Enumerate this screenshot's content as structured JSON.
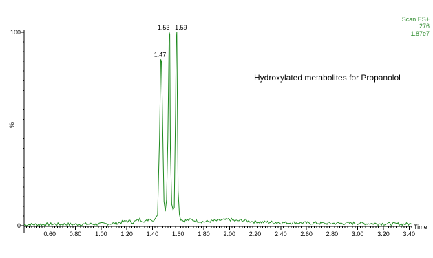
{
  "chart_data": {
    "type": "line",
    "title": "Hydroxylated metabolites for Propanolol",
    "xlabel": "Time",
    "ylabel": "%",
    "xlim": [
      0.4,
      3.42
    ],
    "ylim": [
      0,
      100
    ],
    "x_ticks": [
      "0.60",
      "0.80",
      "1.00",
      "1.20",
      "1.40",
      "1.60",
      "1.80",
      "2.00",
      "2.20",
      "2.40",
      "2.60",
      "2.80",
      "3.00",
      "3.20",
      "3.40"
    ],
    "y_ticks": [
      "100",
      "0"
    ],
    "grid": false,
    "line_color": "#1f8a1f",
    "scan_info": {
      "mode": "Scan ES+",
      "mass": "276",
      "intensity": "1.87e7"
    },
    "peaks": [
      {
        "x": 1.47,
        "label": "1.47",
        "value": 86
      },
      {
        "x": 1.53,
        "label": "1.53",
        "value": 100
      },
      {
        "x": 1.59,
        "label": "1.59",
        "value": 100
      }
    ],
    "series": [
      {
        "x": [
          0.4,
          0.6,
          0.8,
          1.0,
          1.1,
          1.18,
          1.2,
          1.25,
          1.3,
          1.35,
          1.38,
          1.4,
          1.42,
          1.44,
          1.455,
          1.465,
          1.47,
          1.475,
          1.485,
          1.49,
          1.5,
          1.51,
          1.52,
          1.53,
          1.535,
          1.54,
          1.55,
          1.56,
          1.57,
          1.58,
          1.585,
          1.59,
          1.595,
          1.6,
          1.61,
          1.62,
          1.64,
          1.7,
          1.8,
          1.9,
          2.0,
          2.05,
          2.1,
          2.2,
          2.4,
          2.6,
          2.8,
          3.0,
          3.2,
          3.42
        ],
        "y": [
          0.5,
          0.8,
          0.7,
          0.9,
          1.2,
          2.0,
          2.6,
          1.8,
          3.2,
          2.2,
          4.0,
          2.4,
          3.8,
          6.0,
          45,
          86,
          85,
          70,
          30,
          12,
          8,
          14,
          45,
          100,
          99,
          40,
          12,
          8,
          10,
          60,
          95,
          100,
          55,
          18,
          6,
          3.5,
          2.5,
          3.0,
          2.0,
          2.6,
          3.2,
          2.4,
          2.8,
          2.0,
          1.6,
          1.4,
          1.2,
          1.3,
          1.0,
          0.8
        ]
      }
    ]
  }
}
